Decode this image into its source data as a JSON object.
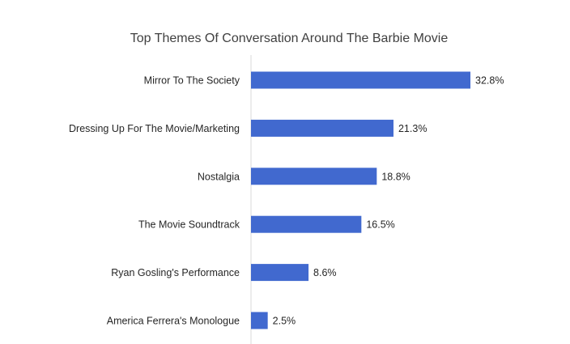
{
  "chart_data": {
    "type": "bar",
    "orientation": "horizontal",
    "title": "Top Themes Of Conversation Around The Barbie Movie",
    "categories": [
      "Mirror To The Society",
      "Dressing Up For The Movie/Marketing",
      "Nostalgia",
      "The Movie Soundtrack",
      "Ryan Gosling's Performance",
      "America Ferrera's Monologue"
    ],
    "values": [
      32.8,
      21.3,
      18.8,
      16.5,
      8.6,
      2.5
    ],
    "value_labels": [
      "32.8%",
      "21.3%",
      "18.8%",
      "16.5%",
      "8.6%",
      "2.5%"
    ],
    "unit": "%",
    "xlim": [
      0,
      32.8
    ],
    "grid": false,
    "legend": "none",
    "bar_color": "#4169cf"
  }
}
